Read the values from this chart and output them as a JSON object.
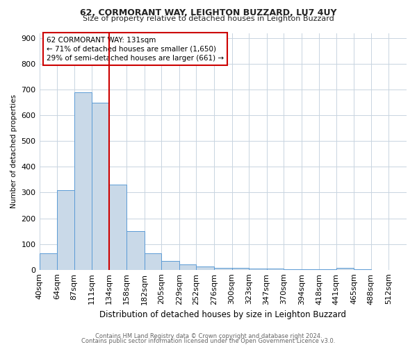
{
  "title1": "62, CORMORANT WAY, LEIGHTON BUZZARD, LU7 4UY",
  "title2": "Size of property relative to detached houses in Leighton Buzzard",
  "xlabel": "Distribution of detached houses by size in Leighton Buzzard",
  "ylabel": "Number of detached properties",
  "bin_labels": [
    "40sqm",
    "64sqm",
    "87sqm",
    "111sqm",
    "134sqm",
    "158sqm",
    "182sqm",
    "205sqm",
    "229sqm",
    "252sqm",
    "276sqm",
    "300sqm",
    "323sqm",
    "347sqm",
    "370sqm",
    "394sqm",
    "418sqm",
    "441sqm",
    "465sqm",
    "488sqm",
    "512sqm"
  ],
  "bin_edges": [
    40,
    64,
    87,
    111,
    134,
    158,
    182,
    205,
    229,
    252,
    276,
    300,
    323,
    347,
    370,
    394,
    418,
    441,
    465,
    488,
    512,
    536
  ],
  "bar_heights": [
    63,
    310,
    690,
    650,
    330,
    150,
    63,
    35,
    20,
    12,
    8,
    8,
    5,
    5,
    3,
    2,
    1,
    8,
    3,
    0,
    0
  ],
  "bar_color": "#c9d9e8",
  "bar_edgecolor": "#5b9bd5",
  "vline_x": 134,
  "vline_color": "#cc0000",
  "annotation_text": "62 CORMORANT WAY: 131sqm\n← 71% of detached houses are smaller (1,650)\n29% of semi-detached houses are larger (661) →",
  "annotation_box_color": "#ffffff",
  "annotation_box_edgecolor": "#cc0000",
  "ylim": [
    0,
    920
  ],
  "yticks": [
    0,
    100,
    200,
    300,
    400,
    500,
    600,
    700,
    800,
    900
  ],
  "footer1": "Contains HM Land Registry data © Crown copyright and database right 2024.",
  "footer2": "Contains public sector information licensed under the Open Government Licence v3.0.",
  "bg_color": "#ffffff",
  "grid_color": "#c8d4e0"
}
